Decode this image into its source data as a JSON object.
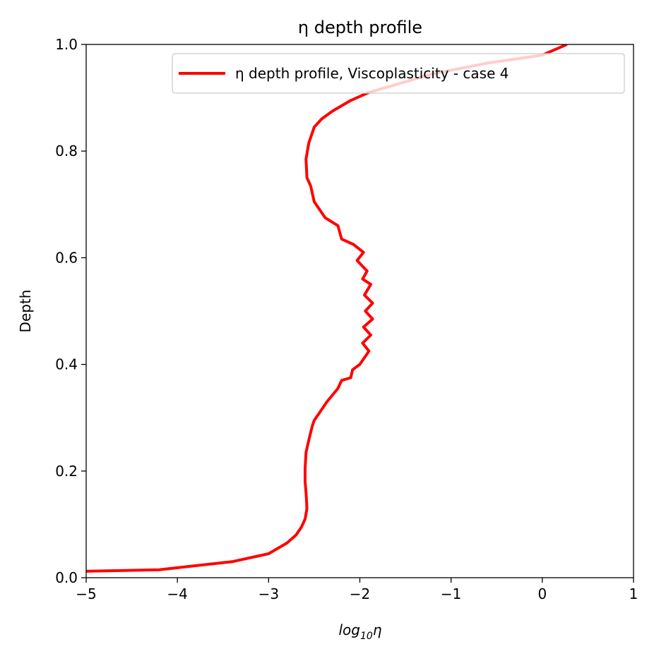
{
  "chart_data": {
    "type": "line",
    "title": "η depth profile",
    "xlabel": "log",
    "xlabel_sub": "10",
    "xlabel_tail": "η",
    "ylabel": "Depth",
    "xlim": [
      -5,
      1
    ],
    "ylim": [
      0,
      1
    ],
    "x_ticks": [
      -5,
      -4,
      -3,
      -2,
      -1,
      0,
      1
    ],
    "x_tick_labels": [
      "−5",
      "−4",
      "−3",
      "−2",
      "−1",
      "0",
      "1"
    ],
    "y_ticks": [
      0,
      0.2,
      0.4,
      0.6,
      0.8,
      1.0
    ],
    "y_tick_labels": [
      "0.0",
      "0.2",
      "0.4",
      "0.6",
      "0.8",
      "1.0"
    ],
    "grid": false,
    "legend_position": "top-right",
    "series": [
      {
        "name": "η depth profile, Viscoplasticity - case 4",
        "color": "#ff0000",
        "x": [
          -5.0,
          -4.2,
          -3.4,
          -3.0,
          -2.8,
          -2.7,
          -2.64,
          -2.6,
          -2.58,
          -2.59,
          -2.6,
          -2.6,
          -2.59,
          -2.55,
          -2.52,
          -2.5,
          -2.44,
          -2.38,
          -2.36,
          -2.24,
          -2.2,
          -2.1,
          -2.08,
          -2.0,
          -1.96,
          -1.9,
          -1.97,
          -1.88,
          -1.96,
          -1.86,
          -1.94,
          -1.86,
          -1.95,
          -1.88,
          -1.97,
          -1.92,
          -2.03,
          -1.96,
          -2.07,
          -2.2,
          -2.24,
          -2.38,
          -2.42,
          -2.5,
          -2.54,
          -2.58,
          -2.59,
          -2.56,
          -2.5,
          -2.42,
          -2.3,
          -2.1,
          -1.9,
          -1.6,
          -1.2,
          -0.6,
          0.0,
          0.27
        ],
        "y": [
          0.012,
          0.015,
          0.03,
          0.045,
          0.065,
          0.08,
          0.095,
          0.11,
          0.13,
          0.16,
          0.18,
          0.205,
          0.235,
          0.265,
          0.285,
          0.295,
          0.31,
          0.325,
          0.33,
          0.355,
          0.37,
          0.375,
          0.39,
          0.4,
          0.41,
          0.425,
          0.44,
          0.455,
          0.47,
          0.485,
          0.5,
          0.515,
          0.53,
          0.55,
          0.56,
          0.575,
          0.595,
          0.61,
          0.625,
          0.635,
          0.66,
          0.675,
          0.685,
          0.705,
          0.735,
          0.75,
          0.785,
          0.815,
          0.845,
          0.86,
          0.875,
          0.895,
          0.91,
          0.925,
          0.945,
          0.965,
          0.98,
          1.0
        ]
      }
    ]
  }
}
